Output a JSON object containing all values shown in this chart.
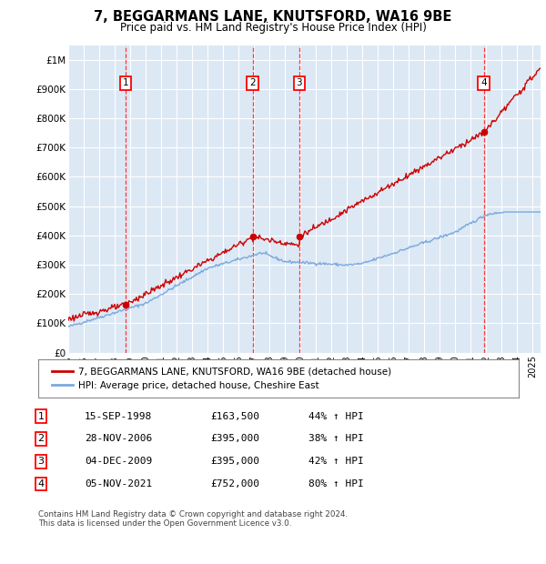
{
  "title": "7, BEGGARMANS LANE, KNUTSFORD, WA16 9BE",
  "subtitle": "Price paid vs. HM Land Registry's House Price Index (HPI)",
  "ylabel_ticks": [
    "£0",
    "£100K",
    "£200K",
    "£300K",
    "£400K",
    "£500K",
    "£600K",
    "£700K",
    "£800K",
    "£900K",
    "£1M"
  ],
  "ytick_values": [
    0,
    100000,
    200000,
    300000,
    400000,
    500000,
    600000,
    700000,
    800000,
    900000,
    1000000
  ],
  "ylim": [
    0,
    1050000
  ],
  "xlim_start": 1995.0,
  "xlim_end": 2025.5,
  "plot_bg_color": "#dde8f5",
  "grid_color": "#ffffff",
  "red_line_color": "#cc0000",
  "blue_line_color": "#7aaadd",
  "sale_dates": [
    1998.71,
    2006.91,
    2009.92,
    2021.84
  ],
  "sale_prices": [
    163500,
    395000,
    395000,
    752000
  ],
  "sale_labels": [
    "1",
    "2",
    "3",
    "4"
  ],
  "legend_red": "7, BEGGARMANS LANE, KNUTSFORD, WA16 9BE (detached house)",
  "legend_blue": "HPI: Average price, detached house, Cheshire East",
  "table_rows": [
    [
      "1",
      "15-SEP-1998",
      "£163,500",
      "44% ↑ HPI"
    ],
    [
      "2",
      "28-NOV-2006",
      "£395,000",
      "38% ↑ HPI"
    ],
    [
      "3",
      "04-DEC-2009",
      "£395,000",
      "42% ↑ HPI"
    ],
    [
      "4",
      "05-NOV-2021",
      "£752,000",
      "80% ↑ HPI"
    ]
  ],
  "footer": "Contains HM Land Registry data © Crown copyright and database right 2024.\nThis data is licensed under the Open Government Licence v3.0.",
  "xtick_years": [
    1995,
    1996,
    1997,
    1998,
    1999,
    2000,
    2001,
    2002,
    2003,
    2004,
    2005,
    2006,
    2007,
    2008,
    2009,
    2010,
    2011,
    2012,
    2013,
    2014,
    2015,
    2016,
    2017,
    2018,
    2019,
    2020,
    2021,
    2022,
    2023,
    2024,
    2025
  ],
  "hpi_seed": 42,
  "red_seed": 123
}
